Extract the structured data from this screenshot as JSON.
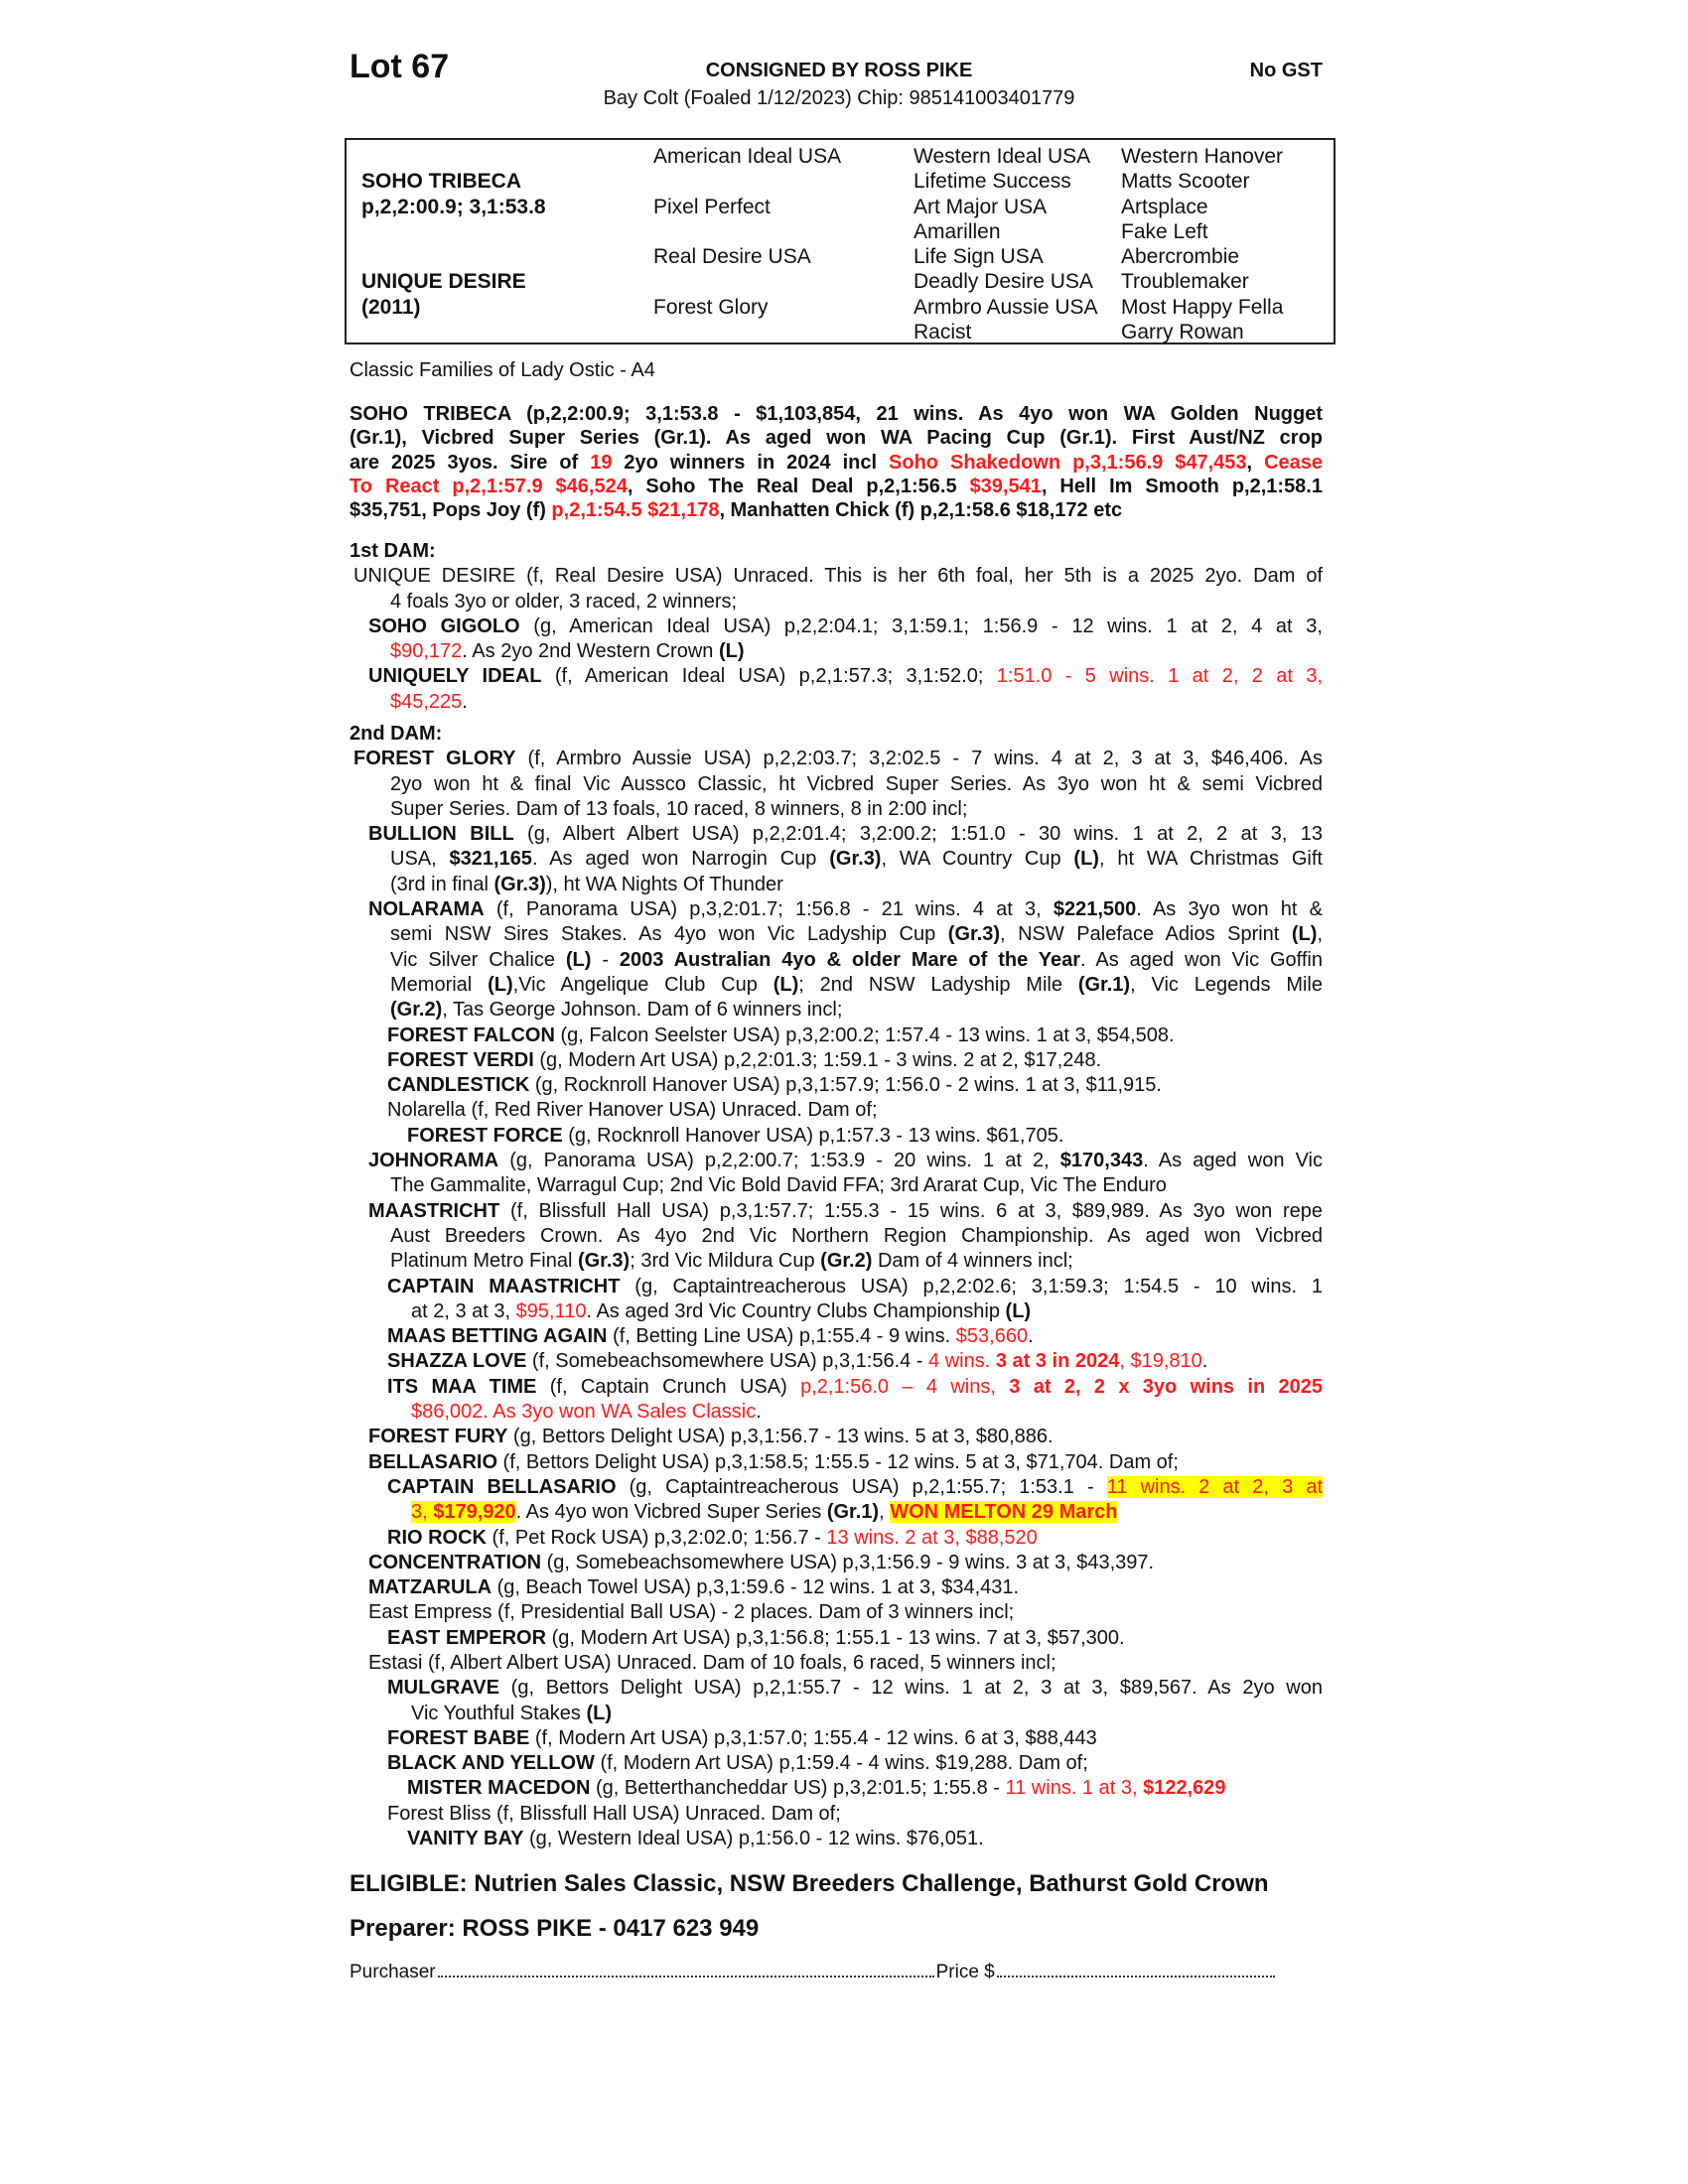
{
  "header": {
    "lot": "Lot 67",
    "consigned": "CONSIGNED BY ROSS PIKE",
    "gst": "No GST",
    "subtitle": "Bay Colt (Foaled 1/12/2023) Chip: 985141003401779"
  },
  "pedigree": {
    "col1": [
      "",
      "SOHO TRIBECA",
      "p,2,2:00.9; 3,1:53.8",
      "",
      "",
      "UNIQUE DESIRE",
      "(2011)",
      ""
    ],
    "col2": [
      "American Ideal USA",
      "",
      "Pixel Perfect",
      "",
      "Real Desire USA",
      "",
      "Forest Glory",
      ""
    ],
    "col3": [
      "Western Ideal USA",
      "Lifetime Success",
      "Art Major USA",
      "Amarillen",
      "Life Sign USA",
      "Deadly Desire USA",
      "Armbro Aussie USA",
      "Racist"
    ],
    "col4": [
      "Western Hanover",
      "Matts Scooter",
      "Artsplace",
      "Fake Left",
      "Abercrombie",
      "Troublemaker",
      "Most Happy Fella",
      "Garry Rowan"
    ]
  },
  "family": "Classic Families of Lady Ostic - A4",
  "colors": {
    "red": "#ff1a1a",
    "highlight": "#ffff00"
  },
  "sire": {
    "lines": [
      [
        {
          "t": "SOHO TRIBECA (p,2,2:00.9; 3,1:53.8 - $1,103,854, 21 wins. As 4yo won WA Golden Nugget",
          "s": "b"
        }
      ],
      [
        {
          "t": "(Gr.1), Vicbred Super Series (Gr.1). As aged won WA Pacing Cup (Gr.1). First Aust/NZ crop",
          "s": "b"
        }
      ],
      [
        {
          "t": "are 2025 3yos. Sire of ",
          "s": "b"
        },
        {
          "t": "19",
          "s": "b r"
        },
        {
          "t": " 2yo winners in 2024 incl ",
          "s": "b"
        },
        {
          "t": "Soho Shakedown p,3,1:56.9 $47,453",
          "s": "b r"
        },
        {
          "t": ", ",
          "s": "b"
        },
        {
          "t": "Cease",
          "s": "b r"
        }
      ],
      [
        {
          "t": "To React p,2,1:57.9 $46,524",
          "s": "b r"
        },
        {
          "t": ", Soho The Real Deal p,2,1:56.5 ",
          "s": "b"
        },
        {
          "t": "$39,541",
          "s": "b r"
        },
        {
          "t": ", Hell Im Smooth p,2,1:58.1",
          "s": "b"
        }
      ],
      [
        {
          "t": "$35,751, Pops Joy (f) ",
          "s": "b"
        },
        {
          "t": "p,2,1:54.5 $21,178",
          "s": "b r"
        },
        {
          "t": ", Manhatten Chick (f) p,2,1:58.6 $18,172 etc",
          "s": "b"
        }
      ]
    ]
  },
  "dam1": {
    "heading": "1st DAM:",
    "entries": [
      {
        "level": 0,
        "lines": [
          [
            {
              "t": "UNIQUE DESIRE (f, Real Desire USA) Unraced. This is her 6th foal, her 5th is a 2025 2yo. Dam of"
            }
          ],
          [
            {
              "t": "4 foals 3yo or older, 3 raced, 2 winners;"
            }
          ]
        ]
      },
      {
        "level": 1,
        "lines": [
          [
            {
              "t": "SOHO GIGOLO",
              "s": "b"
            },
            {
              "t": " (g, American Ideal USA) p,2,2:04.1; 3,1:59.1; 1:56.9 - 12 wins. 1 at 2, 4 at 3,"
            }
          ],
          [
            {
              "t": "$90,172",
              "s": "r"
            },
            {
              "t": ". As 2yo 2nd Western Crown "
            },
            {
              "t": "(L)",
              "s": "b"
            }
          ]
        ]
      },
      {
        "level": 1,
        "lines": [
          [
            {
              "t": "UNIQUELY IDEAL",
              "s": "b"
            },
            {
              "t": " (f, American Ideal USA) p,2,1:57.3; 3,1:52.0; "
            },
            {
              "t": "1:51.0 - 5 wins. 1 at 2, 2 at 3,",
              "s": "r"
            }
          ],
          [
            {
              "t": "$45,225",
              "s": "r"
            },
            {
              "t": "."
            }
          ]
        ]
      }
    ]
  },
  "dam2": {
    "heading": "2nd DAM:",
    "entries": [
      {
        "level": 0,
        "lines": [
          [
            {
              "t": "FOREST GLORY",
              "s": "b"
            },
            {
              "t": " (f, Armbro Aussie USA) p,2,2:03.7; 3,2:02.5 - 7 wins. 4 at 2, 3 at 3, $46,406. As"
            }
          ],
          [
            {
              "t": "2yo won ht & final Vic Aussco Classic, ht Vicbred Super Series. As 3yo won ht & semi Vicbred"
            }
          ],
          [
            {
              "t": "Super Series. Dam of 13 foals, 10 raced, 8 winners, 8 in 2:00 incl;"
            }
          ]
        ]
      },
      {
        "level": 1,
        "lines": [
          [
            {
              "t": "BULLION BILL",
              "s": "b"
            },
            {
              "t": " (g, Albert Albert USA) p,2,2:01.4; 3,2:00.2; 1:51.0 - 30 wins. 1 at 2, 2 at 3, 13"
            }
          ],
          [
            {
              "t": "USA, "
            },
            {
              "t": "$321,165",
              "s": "b"
            },
            {
              "t": ". As aged won Narrogin Cup "
            },
            {
              "t": "(Gr.3)",
              "s": "b"
            },
            {
              "t": ", WA Country Cup "
            },
            {
              "t": "(L)",
              "s": "b"
            },
            {
              "t": ", ht WA Christmas Gift"
            }
          ],
          [
            {
              "t": "(3rd in final "
            },
            {
              "t": "(Gr.3)",
              "s": "b"
            },
            {
              "t": "), ht WA Nights Of Thunder"
            }
          ]
        ]
      },
      {
        "level": 1,
        "lines": [
          [
            {
              "t": "NOLARAMA",
              "s": "b"
            },
            {
              "t": " (f, Panorama USA) p,3,2:01.7; 1:56.8 - 21 wins. 4 at 3, "
            },
            {
              "t": "$221,500",
              "s": "b"
            },
            {
              "t": ". As 3yo won ht &"
            }
          ],
          [
            {
              "t": "semi NSW Sires Stakes. As 4yo won Vic Ladyship Cup "
            },
            {
              "t": "(Gr.3)",
              "s": "b"
            },
            {
              "t": ", NSW Paleface Adios Sprint "
            },
            {
              "t": "(L)",
              "s": "b"
            },
            {
              "t": ","
            }
          ],
          [
            {
              "t": "Vic Silver Chalice "
            },
            {
              "t": "(L)",
              "s": "b"
            },
            {
              "t": " - "
            },
            {
              "t": "2003 Australian 4yo & older Mare of the Year",
              "s": "b"
            },
            {
              "t": ". As aged won Vic Goffin"
            }
          ],
          [
            {
              "t": "Memorial "
            },
            {
              "t": "(L)",
              "s": "b"
            },
            {
              "t": ",Vic Angelique Club Cup "
            },
            {
              "t": "(L)",
              "s": "b"
            },
            {
              "t": "; 2nd NSW Ladyship Mile "
            },
            {
              "t": "(Gr.1)",
              "s": "b"
            },
            {
              "t": ", Vic Legends Mile"
            }
          ],
          [
            {
              "t": "(Gr.2)",
              "s": "b"
            },
            {
              "t": ", Tas George Johnson. Dam of 6 winners incl;"
            }
          ]
        ]
      },
      {
        "level": 2,
        "lines": [
          [
            {
              "t": "FOREST FALCON",
              "s": "b"
            },
            {
              "t": " (g, Falcon Seelster USA) p,3,2:00.2; 1:57.4 - 13 wins. 1 at 3, $54,508."
            }
          ]
        ]
      },
      {
        "level": 2,
        "lines": [
          [
            {
              "t": "FOREST VERDI",
              "s": "b"
            },
            {
              "t": " (g, Modern Art USA) p,2,2:01.3; 1:59.1 - 3 wins. 2 at 2, $17,248."
            }
          ]
        ]
      },
      {
        "level": 2,
        "lines": [
          [
            {
              "t": "CANDLESTICK",
              "s": "b"
            },
            {
              "t": " (g, Rocknroll Hanover USA) p,3,1:57.9; 1:56.0 - 2 wins. 1 at 3, $11,915."
            }
          ]
        ]
      },
      {
        "level": 2,
        "lines": [
          [
            {
              "t": "Nolarella (f, Red River Hanover USA) Unraced. Dam of;"
            }
          ]
        ]
      },
      {
        "level": 3,
        "lines": [
          [
            {
              "t": "FOREST FORCE",
              "s": "b"
            },
            {
              "t": " (g, Rocknroll Hanover USA) p,1:57.3 - 13 wins. $61,705."
            }
          ]
        ]
      },
      {
        "level": 1,
        "lines": [
          [
            {
              "t": "JOHNORAMA",
              "s": "b"
            },
            {
              "t": " (g, Panorama USA) p,2,2:00.7; 1:53.9 - 20 wins. 1 at 2, "
            },
            {
              "t": "$170,343",
              "s": "b"
            },
            {
              "t": ". As aged won Vic"
            }
          ],
          [
            {
              "t": "The Gammalite, Warragul Cup; 2nd Vic Bold David FFA; 3rd Ararat Cup, Vic The Enduro"
            }
          ]
        ]
      },
      {
        "level": 1,
        "lines": [
          [
            {
              "t": "MAASTRICHT",
              "s": "b"
            },
            {
              "t": " (f, Blissfull Hall USA) p,3,1:57.7; 1:55.3 - 15 wins. 6 at 3, $89,989. As 3yo won repe"
            }
          ],
          [
            {
              "t": "Aust Breeders Crown. As 4yo 2nd Vic Northern Region Championship. As aged won Vicbred"
            }
          ],
          [
            {
              "t": "Platinum Metro Final "
            },
            {
              "t": "(Gr.3)",
              "s": "b"
            },
            {
              "t": "; 3rd Vic Mildura Cup "
            },
            {
              "t": "(Gr.2)",
              "s": "b"
            },
            {
              "t": " Dam of 4 winners incl;"
            }
          ]
        ]
      },
      {
        "level": 2,
        "lines": [
          [
            {
              "t": "CAPTAIN MAASTRICHT",
              "s": "b"
            },
            {
              "t": " (g, Captaintreacherous USA) p,2,2:02.6; 3,1:59.3; 1:54.5 - 10 wins. 1"
            }
          ],
          [
            {
              "t": "at 2, 3 at 3, "
            },
            {
              "t": "$95,110",
              "s": "r"
            },
            {
              "t": ". As aged 3rd Vic Country Clubs Championship "
            },
            {
              "t": "(L)",
              "s": "b"
            }
          ]
        ]
      },
      {
        "level": 2,
        "lines": [
          [
            {
              "t": "MAAS BETTING AGAIN",
              "s": "b"
            },
            {
              "t": " (f, Betting Line USA) p,1:55.4 - 9 wins. "
            },
            {
              "t": "$53,660",
              "s": "r"
            },
            {
              "t": "."
            }
          ]
        ]
      },
      {
        "level": 2,
        "lines": [
          [
            {
              "t": "SHAZZA LOVE",
              "s": "b"
            },
            {
              "t": " (f, Somebeachsomewhere USA) p,3,1:56.4 - "
            },
            {
              "t": "4 wins. ",
              "s": "r"
            },
            {
              "t": "3 at 3 in 2024",
              "s": "b r"
            },
            {
              "t": ", $19,810",
              "s": "r"
            },
            {
              "t": "."
            }
          ]
        ]
      },
      {
        "level": 2,
        "lines": [
          [
            {
              "t": "ITS MAA TIME",
              "s": "b"
            },
            {
              "t": " (f, Captain Crunch USA) "
            },
            {
              "t": "p,2,1:56.0 – 4 wins, ",
              "s": "r"
            },
            {
              "t": "3 at 2, 2 x 3yo wins in 2025",
              "s": "b r"
            }
          ],
          [
            {
              "t": "$86,002. As 3yo won WA Sales Classic",
              "s": "r"
            },
            {
              "t": "."
            }
          ]
        ]
      },
      {
        "level": 1,
        "lines": [
          [
            {
              "t": "FOREST FURY",
              "s": "b"
            },
            {
              "t": " (g, Bettors Delight USA) p,3,1:56.7 - 13 wins. 5 at 3, $80,886."
            }
          ]
        ]
      },
      {
        "level": 1,
        "lines": [
          [
            {
              "t": "BELLASARIO",
              "s": "b"
            },
            {
              "t": " (f, Bettors Delight USA) p,3,1:58.5; 1:55.5 - 12 wins. 5 at 3, $71,704. Dam of;"
            }
          ]
        ]
      },
      {
        "level": 2,
        "lines": [
          [
            {
              "t": "CAPTAIN BELLASARIO",
              "s": "b"
            },
            {
              "t": " (g, Captaintreacherous USA) p,2,1:55.7; 1:53.1 - "
            },
            {
              "t": "11 wins. 2 at 2, 3 at",
              "s": "r h"
            }
          ],
          [
            {
              "t": "3, ",
              "s": "r h"
            },
            {
              "t": "$179,920",
              "s": "b r h"
            },
            {
              "t": ". As 4yo won Vicbred Super Series "
            },
            {
              "t": "(Gr.1)",
              "s": "b"
            },
            {
              "t": ", "
            },
            {
              "t": "WON MELTON 29 March",
              "s": "b r h"
            }
          ]
        ]
      },
      {
        "level": 2,
        "lines": [
          [
            {
              "t": "RIO ROCK",
              "s": "b"
            },
            {
              "t": " (f, Pet Rock USA) p,3,2:02.0; 1:56.7 - "
            },
            {
              "t": "13 wins. 2 at 3, $88,520",
              "s": "r"
            }
          ]
        ]
      },
      {
        "level": 1,
        "lines": [
          [
            {
              "t": "CONCENTRATION",
              "s": "b"
            },
            {
              "t": " (g, Somebeachsomewhere USA) p,3,1:56.9 - 9 wins. 3 at 3, $43,397."
            }
          ]
        ]
      },
      {
        "level": 1,
        "lines": [
          [
            {
              "t": "MATZARULA",
              "s": "b"
            },
            {
              "t": " (g, Beach Towel USA) p,3,1:59.6 - 12 wins. 1 at 3, $34,431."
            }
          ]
        ]
      },
      {
        "level": 1,
        "lines": [
          [
            {
              "t": "East Empress (f, Presidential Ball USA) - 2 places. Dam of 3 winners incl;"
            }
          ]
        ]
      },
      {
        "level": 2,
        "lines": [
          [
            {
              "t": "EAST EMPEROR",
              "s": "b"
            },
            {
              "t": " (g, Modern Art USA) p,3,1:56.8; 1:55.1 - 13 wins. 7 at 3, $57,300."
            }
          ]
        ]
      },
      {
        "level": 1,
        "lines": [
          [
            {
              "t": "Estasi (f, Albert Albert USA) Unraced. Dam of 10 foals, 6 raced, 5 winners incl;"
            }
          ]
        ]
      },
      {
        "level": 2,
        "lines": [
          [
            {
              "t": "MULGRAVE",
              "s": "b"
            },
            {
              "t": " (g, Bettors Delight USA) p,2,1:55.7 - 12 wins. 1 at 2, 3 at 3, $89,567. As 2yo won"
            }
          ],
          [
            {
              "t": "Vic Youthful Stakes "
            },
            {
              "t": "(L)",
              "s": "b"
            }
          ]
        ]
      },
      {
        "level": 2,
        "lines": [
          [
            {
              "t": "FOREST BABE",
              "s": "b"
            },
            {
              "t": " (f, Modern Art USA) p,3,1:57.0; 1:55.4 - 12 wins. 6 at 3, $88,443"
            }
          ]
        ]
      },
      {
        "level": 2,
        "lines": [
          [
            {
              "t": "BLACK AND YELLOW",
              "s": "b"
            },
            {
              "t": " (f, Modern Art USA) p,1:59.4 - 4 wins. $19,288. Dam of;"
            }
          ]
        ]
      },
      {
        "level": 3,
        "lines": [
          [
            {
              "t": "MISTER MACEDON",
              "s": "b"
            },
            {
              "t": " (g, Betterthancheddar US) p,3,2:01.5; 1:55.8 - "
            },
            {
              "t": "11 wins. 1 at 3, ",
              "s": "r"
            },
            {
              "t": "$122,629",
              "s": "b r"
            }
          ]
        ]
      },
      {
        "level": 2,
        "lines": [
          [
            {
              "t": "Forest Bliss (f, Blissfull Hall USA) Unraced. Dam of;"
            }
          ]
        ]
      },
      {
        "level": 3,
        "lines": [
          [
            {
              "t": "VANITY BAY",
              "s": "b"
            },
            {
              "t": " (g, Western Ideal USA) p,1:56.0 - 12 wins. $76,051."
            }
          ]
        ]
      }
    ]
  },
  "footer": {
    "eligible": "ELIGIBLE: Nutrien Sales Classic, NSW Breeders Challenge, Bathurst Gold Crown",
    "preparer": "Preparer: ROSS PIKE - 0417 623 949",
    "purchaser_label": "Purchaser",
    "price_label": "Price $"
  }
}
